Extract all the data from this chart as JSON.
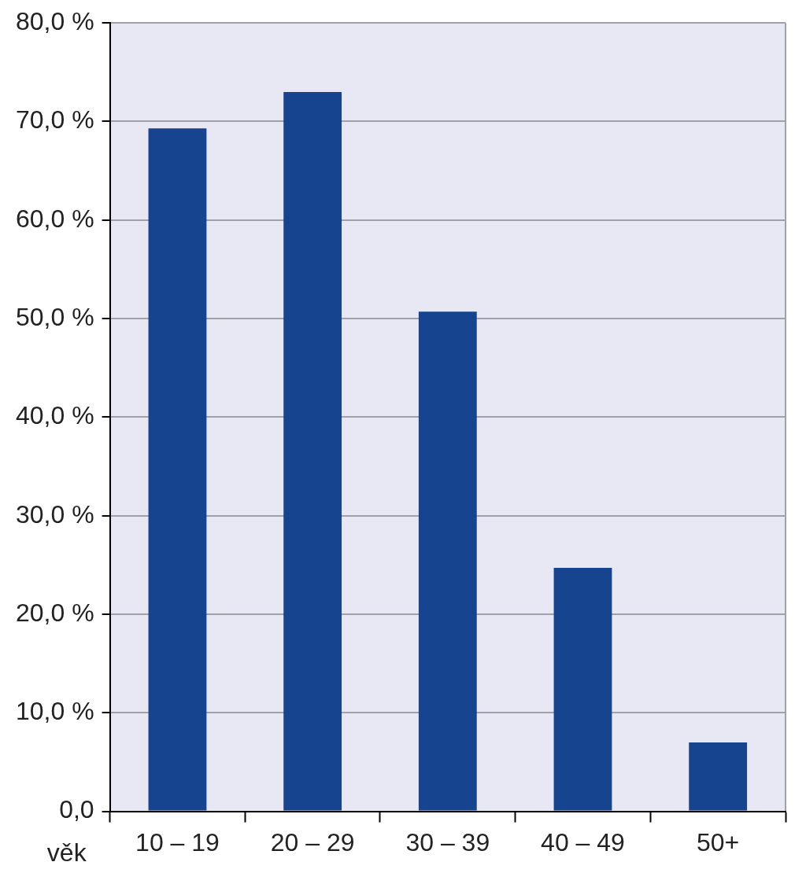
{
  "chart_data": {
    "type": "bar",
    "xlabel": "věk",
    "categories": [
      "10 – 19",
      "20 – 29",
      "30 – 39",
      "40 – 49",
      "50+"
    ],
    "values": [
      69.3,
      73.0,
      50.7,
      24.7,
      7.0
    ],
    "color": "#17448f",
    "ylim": [
      0,
      80
    ],
    "yticks": [
      {
        "value": 0,
        "label": "0,0"
      },
      {
        "value": 10,
        "label": "10,0 %"
      },
      {
        "value": 20,
        "label": "20,0 %"
      },
      {
        "value": 30,
        "label": "30,0 %"
      },
      {
        "value": 40,
        "label": "40,0 %"
      },
      {
        "value": 50,
        "label": "50,0 %"
      },
      {
        "value": 60,
        "label": "60,0 %"
      },
      {
        "value": 70,
        "label": "70,0 %"
      },
      {
        "value": 80,
        "label": "80,0 %"
      }
    ],
    "grid": "y",
    "legend": false
  }
}
